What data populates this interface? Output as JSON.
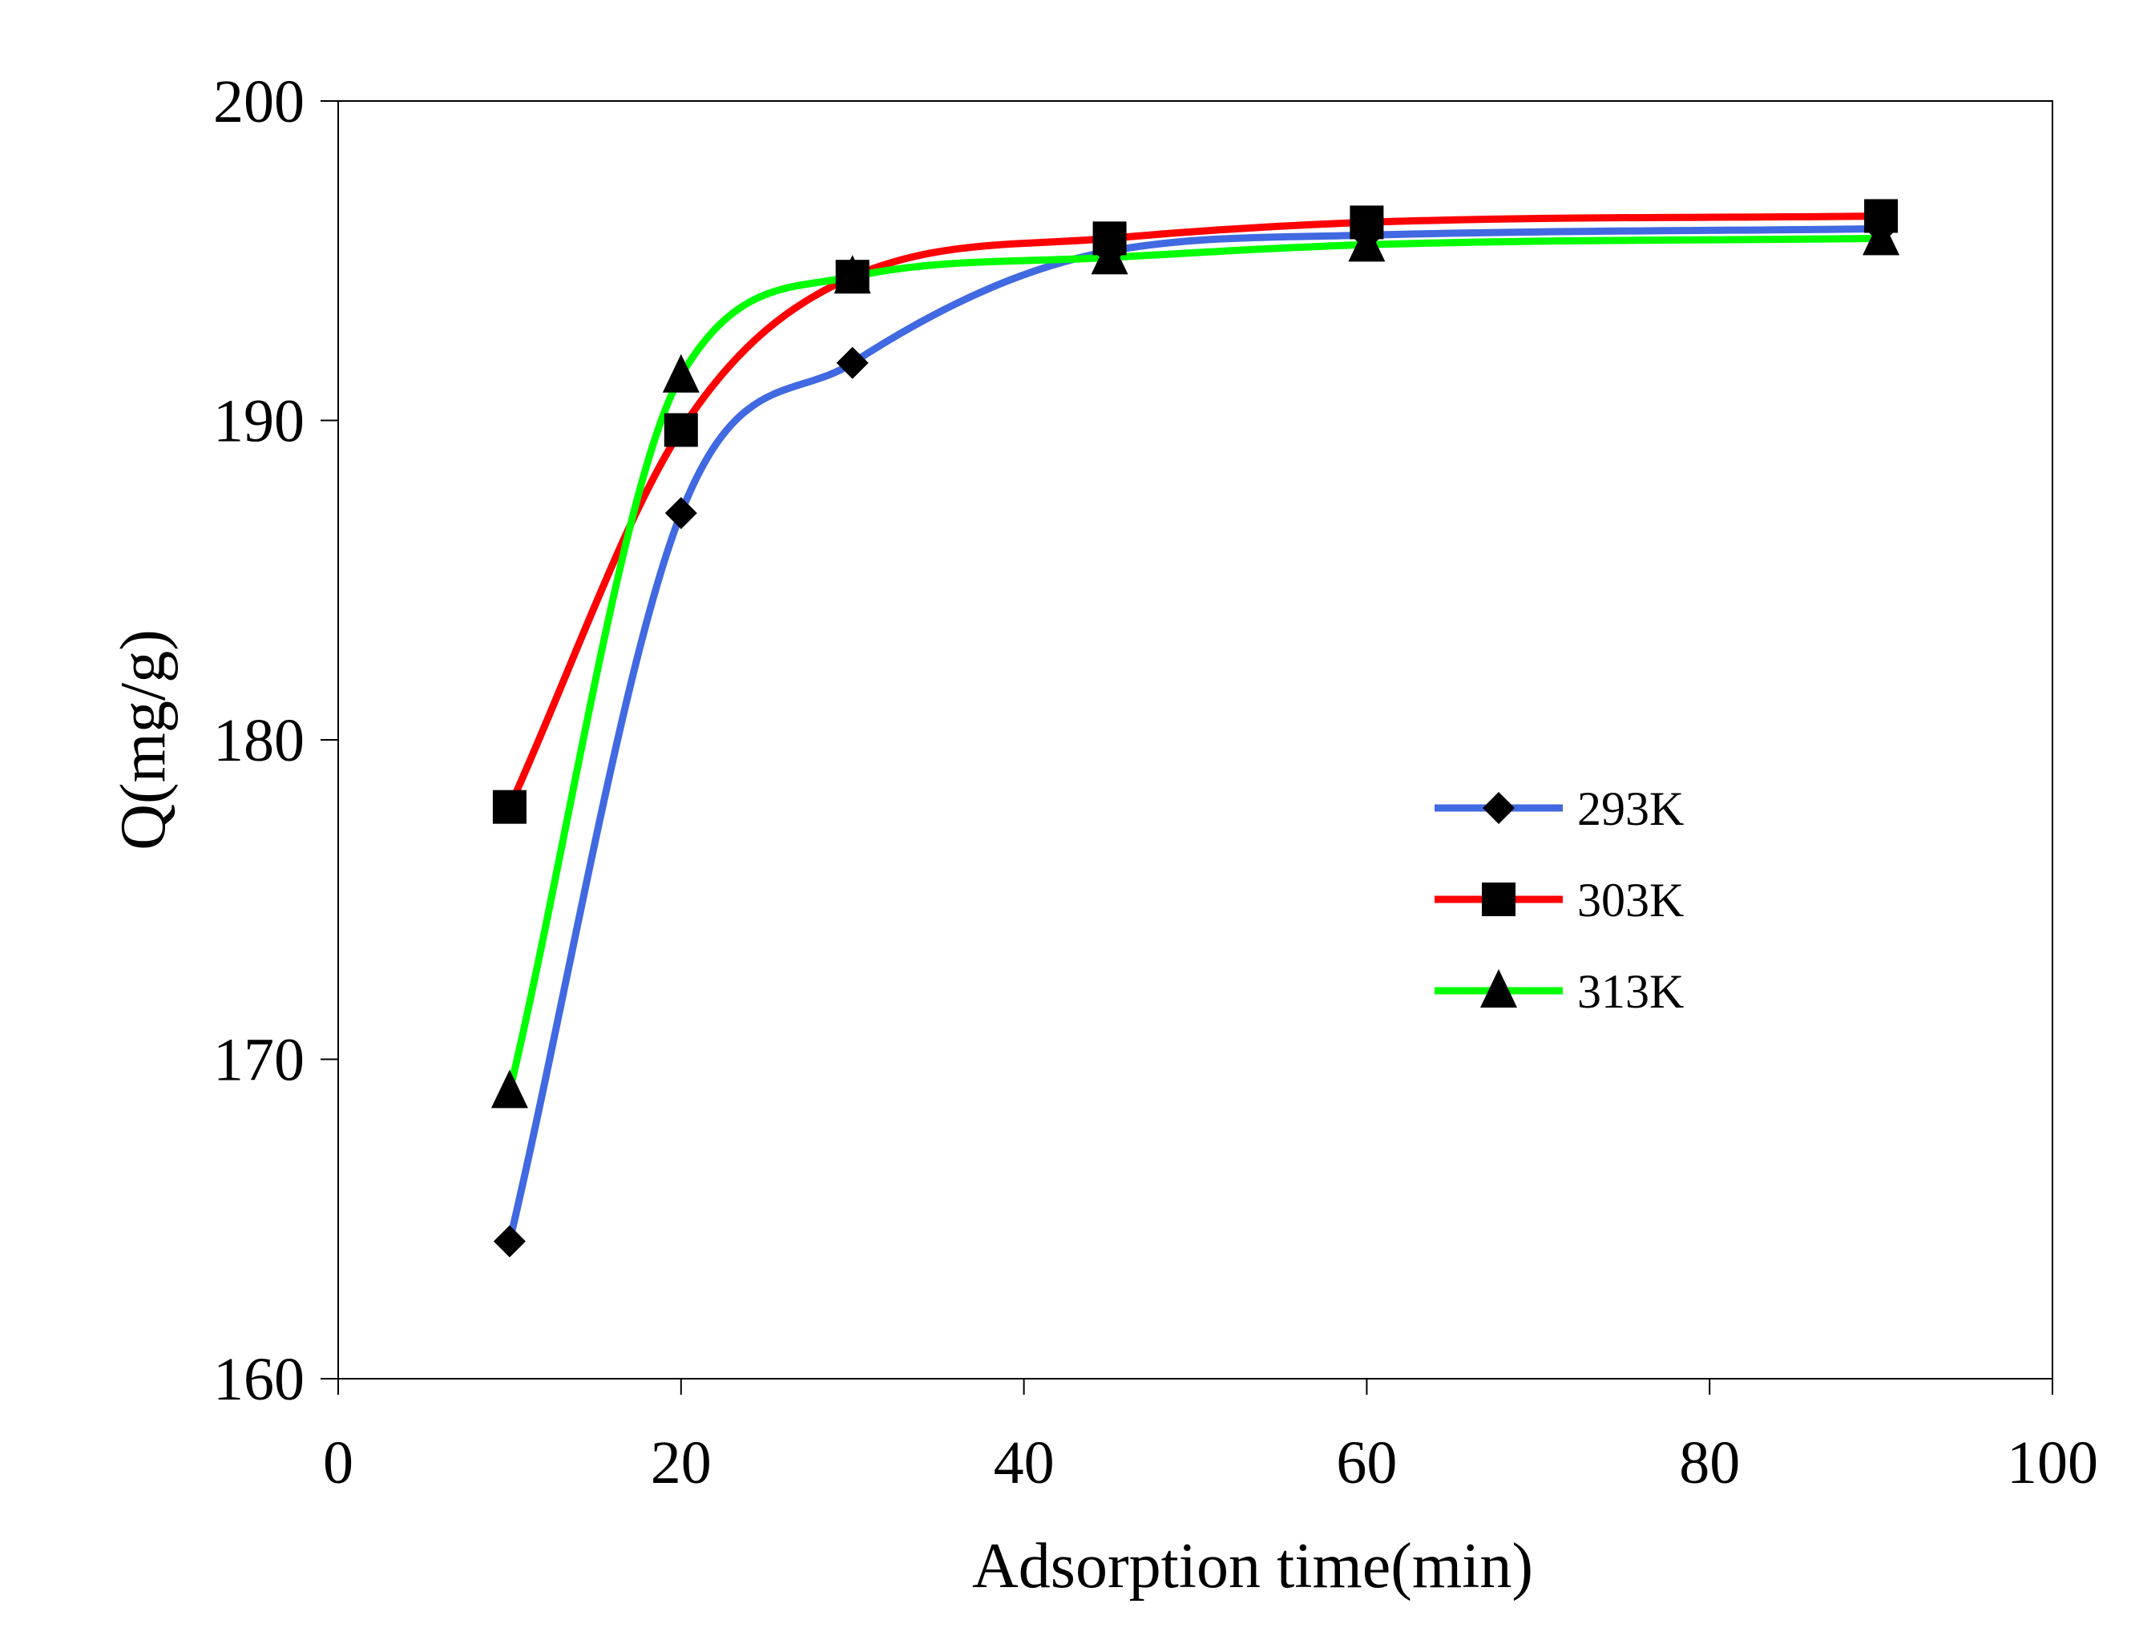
{
  "chart_data": {
    "type": "line",
    "title": "",
    "xlabel": "Adsorption time(min)",
    "ylabel": "Q(mg/g)",
    "xlim": [
      0,
      100
    ],
    "ylim": [
      160,
      200
    ],
    "xticks": [
      0,
      20,
      40,
      60,
      80,
      100
    ],
    "yticks": [
      160,
      170,
      180,
      190,
      200
    ],
    "x_tick_labels": [
      "0",
      "20",
      "40",
      "60",
      "80",
      "100"
    ],
    "y_tick_labels": [
      "160",
      "170",
      "180",
      "190",
      "200"
    ],
    "grid": false,
    "legend_position": "right-middle",
    "series": [
      {
        "name": "293K",
        "color": "#4169e1",
        "marker": "diamond",
        "x": [
          10,
          20,
          30,
          45,
          60,
          90
        ],
        "y": [
          164.3,
          187.1,
          191.8,
          195.3,
          195.8,
          196.0
        ]
      },
      {
        "name": "303K",
        "color": "#ff0000",
        "marker": "square",
        "x": [
          10,
          20,
          30,
          45,
          60,
          90
        ],
        "y": [
          177.9,
          189.7,
          194.5,
          195.7,
          196.2,
          196.4
        ]
      },
      {
        "name": "313K",
        "color": "#00ff00",
        "marker": "triangle",
        "x": [
          10,
          20,
          30,
          45,
          60,
          90
        ],
        "y": [
          169.0,
          191.4,
          194.5,
          195.1,
          195.5,
          195.7
        ]
      }
    ]
  }
}
